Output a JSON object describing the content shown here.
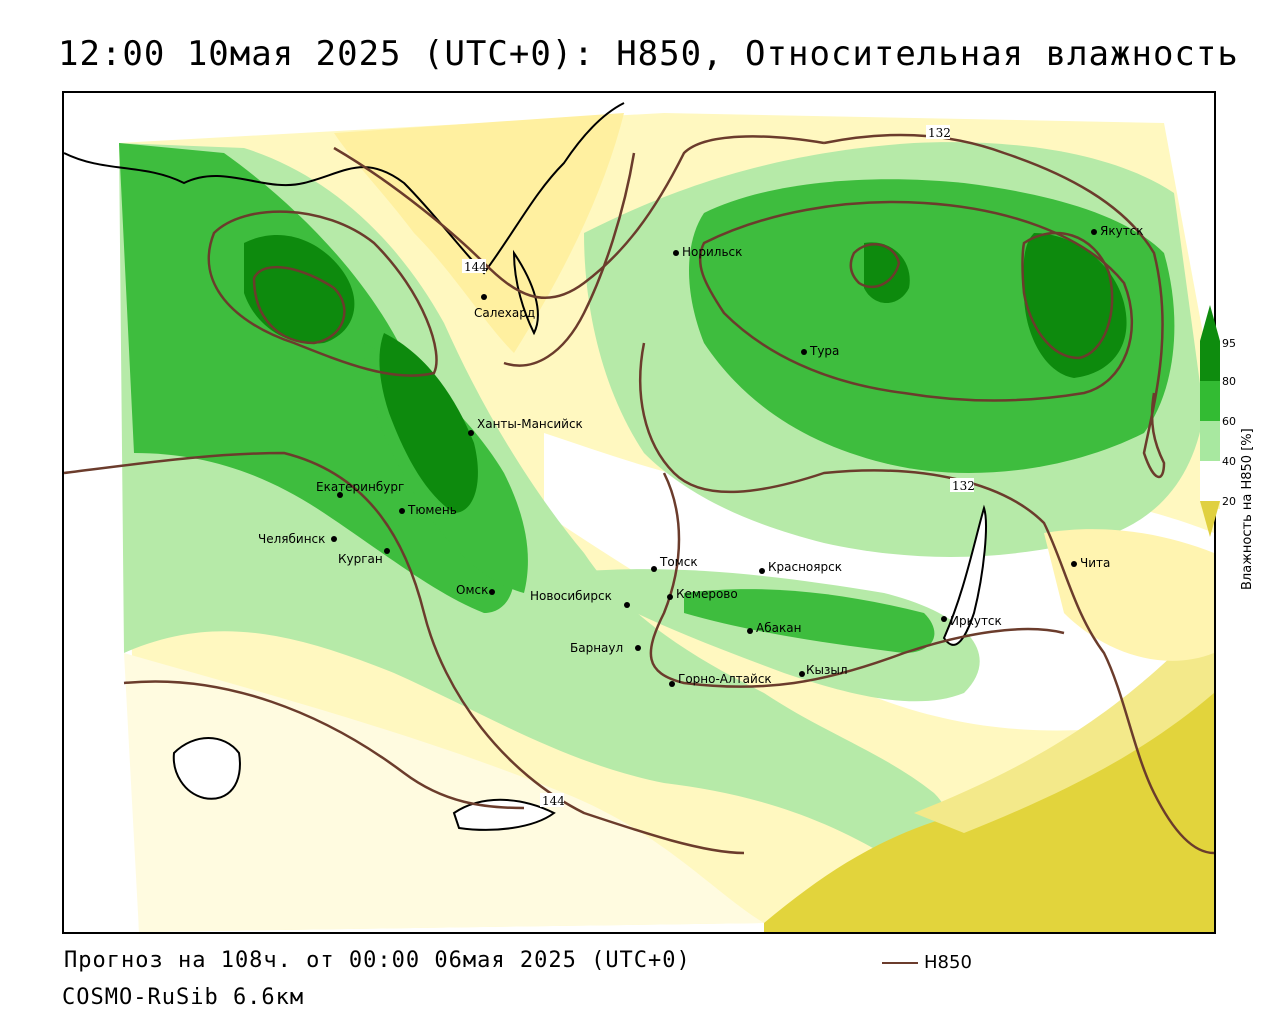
{
  "header": {
    "title": "12:00 10мая 2025 (UTC+0): H850, Относительная влажность"
  },
  "footer": {
    "forecast": "Прогноз на 108ч. от 00:00 06мая 2025 (UTC+0)",
    "model": "COSMO-RuSib 6.6км",
    "legend_label": "H850",
    "legend_color": "#6b3c2c"
  },
  "colorbar": {
    "title": "Влажность на H850 [%]",
    "ticks": [
      "95",
      "80",
      "60",
      "40",
      "20"
    ],
    "colors": [
      "#0e8c0e",
      "#33bb33",
      "#a8e8a0",
      "#ffffff",
      "#fff8b8",
      "#e0d040"
    ]
  },
  "map": {
    "contour_labels": [
      "132",
      "144",
      "132",
      "144"
    ],
    "cities": [
      {
        "name": "Норильск"
      },
      {
        "name": "Якутск"
      },
      {
        "name": "Салехард"
      },
      {
        "name": "Тура"
      },
      {
        "name": "Ханты-Мансийск"
      },
      {
        "name": "Екатеринбург"
      },
      {
        "name": "Тюмень"
      },
      {
        "name": "Челябинск"
      },
      {
        "name": "Курган"
      },
      {
        "name": "Омск"
      },
      {
        "name": "Томск"
      },
      {
        "name": "Красноярск"
      },
      {
        "name": "Новосибирск"
      },
      {
        "name": "Кемерово"
      },
      {
        "name": "Абакан"
      },
      {
        "name": "Иркутск"
      },
      {
        "name": "Барнаул"
      },
      {
        "name": "Горно-Алтайск"
      },
      {
        "name": "Кызыл"
      },
      {
        "name": "Чита"
      }
    ]
  }
}
